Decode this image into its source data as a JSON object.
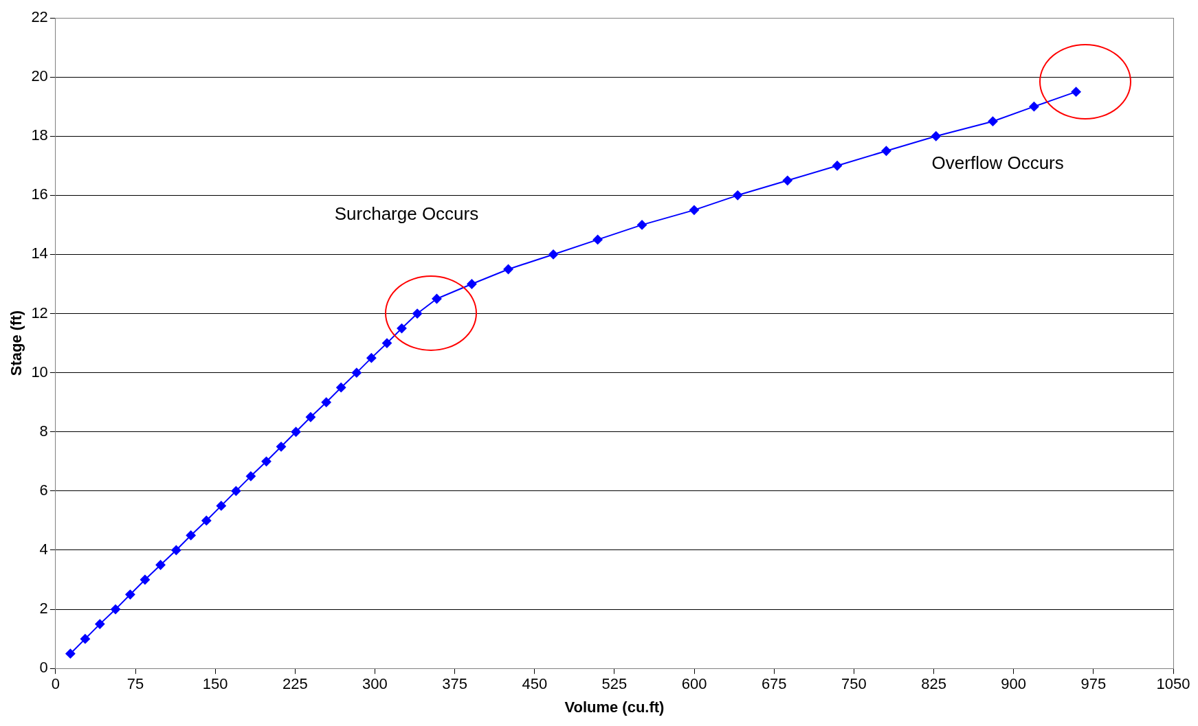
{
  "chart_data": {
    "type": "line",
    "xlabel": "Volume (cu.ft)",
    "ylabel": "Stage (ft)",
    "x": [
      13.9,
      27.8,
      41.6,
      56.3,
      70.1,
      84,
      98.6,
      113.3,
      127.1,
      141.7,
      155.6,
      169.5,
      183.4,
      198,
      211.9,
      225.8,
      239.6,
      254.3,
      268.2,
      282.8,
      296.7,
      311.3,
      325.2,
      339.8,
      358.1,
      391,
      425.3,
      467.6,
      509.3,
      550.9,
      599.9,
      640.8,
      687.6,
      734.3,
      780.4,
      827.1,
      880.5,
      919.2,
      958.7
    ],
    "series": [
      {
        "color": "#0000ff",
        "values": [
          0.5,
          1,
          1.5,
          2,
          2.5,
          3,
          3.5,
          4,
          4.5,
          5,
          5.5,
          6,
          6.5,
          7,
          7.5,
          8,
          8.5,
          9,
          9.5,
          10,
          10.5,
          11,
          11.5,
          12,
          12.5,
          13,
          13.5,
          14,
          14.5,
          15,
          15.5,
          16,
          16.5,
          17,
          17.5,
          18,
          18.5,
          19,
          19.5
        ]
      }
    ],
    "xlim": [
      0,
      1050
    ],
    "xticks": [
      0,
      75,
      150,
      225,
      300,
      375,
      450,
      525,
      600,
      675,
      750,
      825,
      900,
      975,
      1050
    ],
    "ylim": [
      0,
      22
    ],
    "yticks": [
      0,
      2,
      4,
      6,
      8,
      10,
      12,
      14,
      16,
      18,
      20,
      22
    ],
    "grid": "y",
    "legend": false,
    "marker": "diamond",
    "line_style": "solid",
    "annotations": [
      "Surcharge Occurs",
      "Overflow Occurs"
    ]
  }
}
